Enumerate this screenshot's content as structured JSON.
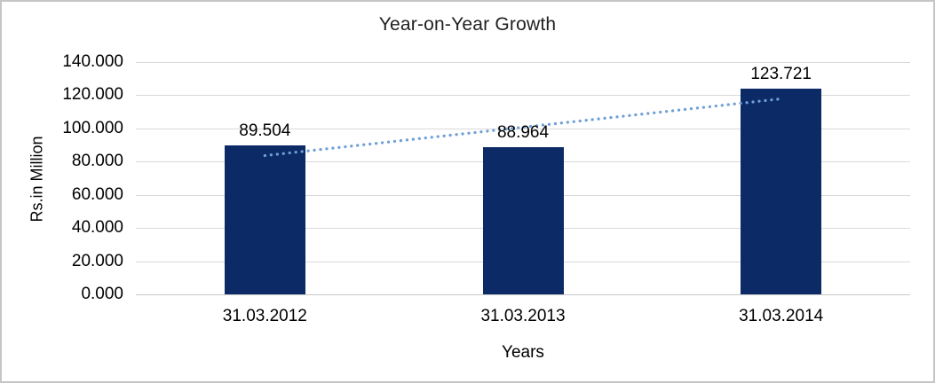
{
  "chart_data": {
    "type": "bar",
    "title": "Year-on-Year Growth",
    "categories": [
      "31.03.2012",
      "31.03.2013",
      "31.03.2014"
    ],
    "values": [
      89.504,
      88.964,
      123.721
    ],
    "value_labels": [
      "89.504",
      "88.964",
      "123.721"
    ],
    "xlabel": "Years",
    "ylabel": "Rs.in Million",
    "ylim": [
      0,
      140
    ],
    "ytick_labels": [
      "0.000",
      "20.000",
      "40.000",
      "60.000",
      "80.000",
      "100.000",
      "120.000",
      "140.000"
    ],
    "grid": true,
    "legend": "none",
    "trendline": {
      "type": "linear",
      "style": "dotted",
      "span": "first-to-last-category"
    },
    "colors": {
      "bar": "#0c2a66",
      "trendline": "#6f9fd8",
      "gridline": "#d9d9d9",
      "axis_line": "#c9c9c9",
      "text": "#000000",
      "title_text": "#1f1f1f",
      "frame_border": "#c6c6c6"
    }
  }
}
